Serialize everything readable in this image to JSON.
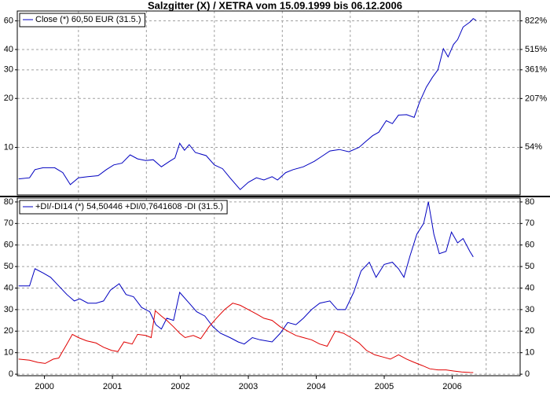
{
  "chart_data": [
    {
      "type": "line",
      "title": "Salzgitter (X) / XETRA vom 15.09.1999 bis 06.12.2006",
      "x": [
        1999.62,
        1999.78,
        1999.86,
        1999.98,
        2000.15,
        2000.27,
        2000.38,
        2000.5,
        2000.64,
        2000.79,
        2000.91,
        2001.02,
        2001.14,
        2001.26,
        2001.37,
        2001.49,
        2001.6,
        2001.72,
        2001.84,
        2001.92,
        2001.99,
        2002.06,
        2002.13,
        2002.22,
        2002.38,
        2002.5,
        2002.62,
        2002.73,
        2002.88,
        2003.0,
        2003.12,
        2003.23,
        2003.35,
        2003.43,
        2003.55,
        2003.66,
        2003.81,
        2003.97,
        2004.08,
        2004.2,
        2004.34,
        2004.48,
        2004.63,
        2004.72,
        2004.83,
        2004.92,
        2005.03,
        2005.12,
        2005.21,
        2005.33,
        2005.44,
        2005.52,
        2005.62,
        2005.71,
        2005.79,
        2005.87,
        2005.94,
        2006.02,
        2006.08,
        2006.16,
        2006.26,
        2006.31,
        2006.35
      ],
      "series": [
        {
          "name": "Close (*) 60,50 EUR (31.5.)",
          "color": "#0000c0",
          "values": [
            6.4,
            6.5,
            7.3,
            7.5,
            7.5,
            7.0,
            5.9,
            6.5,
            6.6,
            6.7,
            7.3,
            7.8,
            8.0,
            9.0,
            8.5,
            8.3,
            8.4,
            7.6,
            8.2,
            8.6,
            10.6,
            9.6,
            10.4,
            9.3,
            8.9,
            7.8,
            7.4,
            6.5,
            5.5,
            6.1,
            6.5,
            6.3,
            6.6,
            6.3,
            7.0,
            7.3,
            7.6,
            8.2,
            8.8,
            9.5,
            9.7,
            9.4,
            10.0,
            10.8,
            11.8,
            12.4,
            14.6,
            14.0,
            15.8,
            15.9,
            15.3,
            19.0,
            23.5,
            27.0,
            30.0,
            40.5,
            36.0,
            43.0,
            46.0,
            55.0,
            59.0,
            62.0,
            60.5
          ]
        }
      ],
      "xlim": [
        1999.6,
        2007.0
      ],
      "ylim": [
        5.1,
        69
      ],
      "yticks": [
        10,
        20,
        30,
        40,
        60
      ],
      "yscale": "log",
      "y2lim": [
        -21.6,
        960
      ],
      "y2ticks": [
        {
          "value": 54,
          "label": "54%"
        },
        {
          "value": 207,
          "label": "207%"
        },
        {
          "value": 361,
          "label": "361%"
        },
        {
          "value": 515,
          "label": "515%"
        },
        {
          "value": 822,
          "label": "822%"
        }
      ],
      "grid": true,
      "legend": "upper left"
    },
    {
      "type": "line",
      "series": [
        {
          "name": "+DI/-DI14 (*) 54,50446 +DI/0,7641608 -DI (31.5.)",
          "color": "#0000c0",
          "x": [
            1999.62,
            1999.78,
            1999.86,
            1999.98,
            2000.09,
            2000.21,
            2000.33,
            2000.44,
            2000.52,
            2000.64,
            2000.76,
            2000.87,
            2000.97,
            2001.1,
            2001.2,
            2001.31,
            2001.43,
            2001.55,
            2001.64,
            2001.72,
            2001.8,
            2001.9,
            2001.99,
            2002.13,
            2002.24,
            2002.36,
            2002.48,
            2002.59,
            2002.73,
            2002.85,
            2002.94,
            2003.06,
            2003.17,
            2003.35,
            2003.47,
            2003.58,
            2003.7,
            2003.81,
            2003.93,
            2004.05,
            2004.2,
            2004.31,
            2004.43,
            2004.55,
            2004.66,
            2004.78,
            2004.88,
            2005.0,
            2005.12,
            2005.21,
            2005.29,
            2005.38,
            2005.48,
            2005.58,
            2005.65,
            2005.73,
            2005.81,
            2005.91,
            2005.99,
            2006.08,
            2006.16,
            2006.26,
            2006.31
          ],
          "values": [
            41,
            41,
            49,
            47,
            45,
            41,
            37,
            34,
            35,
            33,
            33,
            34,
            39,
            42,
            37,
            36,
            31,
            29,
            23,
            21,
            26,
            25,
            38,
            33,
            29,
            27,
            22,
            19,
            17,
            15,
            14,
            17,
            16,
            15,
            19,
            24,
            23,
            26,
            30,
            33,
            34,
            30,
            30,
            38,
            48,
            52,
            45,
            51,
            52,
            49,
            45,
            55,
            65,
            70,
            80,
            65,
            56,
            57,
            66,
            61,
            63,
            57,
            54.5
          ]
        },
        {
          "color": "#e00000",
          "x": [
            1999.62,
            1999.78,
            1999.9,
            2000.01,
            2000.13,
            2000.21,
            2000.33,
            2000.41,
            2000.5,
            2000.62,
            2000.76,
            2000.87,
            2000.99,
            2001.08,
            2001.17,
            2001.29,
            2001.37,
            2001.49,
            2001.57,
            2001.63,
            2001.72,
            2001.8,
            2001.9,
            2001.99,
            2002.07,
            2002.19,
            2002.3,
            2002.42,
            2002.53,
            2002.65,
            2002.77,
            2002.88,
            2003.0,
            2003.12,
            2003.23,
            2003.35,
            2003.47,
            2003.58,
            2003.7,
            2003.81,
            2003.93,
            2004.05,
            2004.16,
            2004.28,
            2004.4,
            2004.51,
            2004.63,
            2004.74,
            2004.86,
            2004.98,
            2005.09,
            2005.21,
            2005.33,
            2005.44,
            2005.56,
            2005.67,
            2005.79,
            2005.91,
            2006.02,
            2006.14,
            2006.26,
            2006.31
          ],
          "values": [
            7,
            6.5,
            5.5,
            5,
            7,
            7.5,
            14,
            18.5,
            17,
            15.5,
            14.5,
            12.5,
            11,
            10.5,
            15,
            14,
            18.5,
            18,
            17,
            29.5,
            27,
            25,
            22,
            19,
            17,
            18,
            16.5,
            22,
            26,
            30,
            33,
            32,
            30,
            28,
            26,
            25,
            22,
            20,
            18,
            17,
            16,
            14,
            13,
            20,
            19,
            17,
            14.5,
            11,
            9,
            8,
            7,
            9,
            7,
            5.5,
            4,
            2.5,
            2,
            2,
            1.5,
            1,
            0.8,
            0.76
          ]
        }
      ],
      "xlim": [
        1999.6,
        2007.0
      ],
      "xticks": [
        2000,
        2001,
        2002,
        2003,
        2004,
        2005,
        2006
      ],
      "ylim": [
        -0.7,
        81.8
      ],
      "yticks": [
        0,
        10,
        20,
        30,
        40,
        50,
        60,
        70,
        80
      ],
      "y2lim": [
        -0.7,
        81.8
      ],
      "y2ticks": [
        0,
        10,
        20,
        30,
        40,
        50,
        60,
        70,
        80
      ],
      "grid": true,
      "legend": "upper left"
    }
  ]
}
